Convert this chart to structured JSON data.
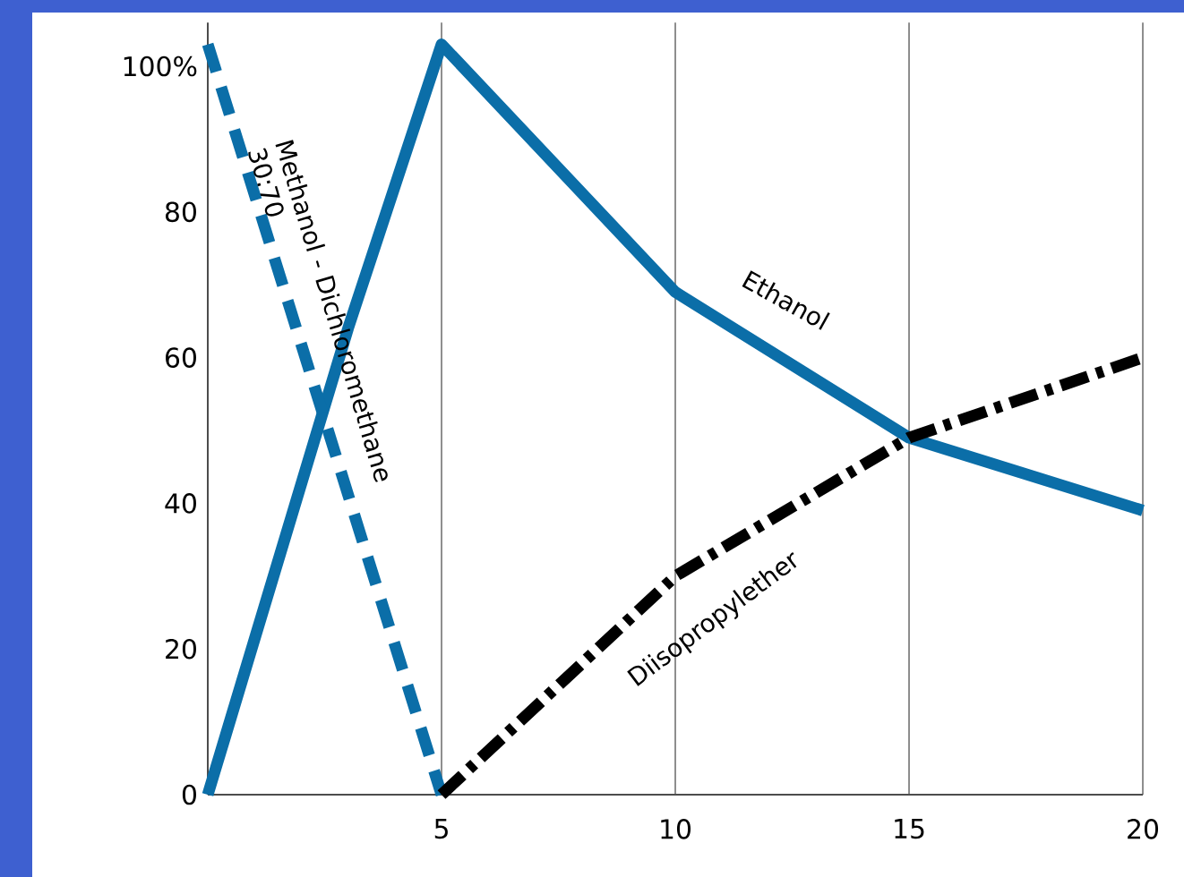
{
  "chart_data": {
    "type": "line",
    "series": [
      {
        "name": "Ethanol",
        "color": "#0b6ea8",
        "line_style": "solid",
        "x": [
          0,
          3,
          5,
          10,
          15,
          20
        ],
        "values": [
          0,
          64,
          103,
          69,
          49,
          39
        ]
      },
      {
        "name": "Methanol - Dichloromethane 30:70",
        "color": "#0b6ea8",
        "line_style": "dashed",
        "x": [
          0,
          5
        ],
        "values": [
          103,
          0
        ]
      },
      {
        "name": "Diisopropylether",
        "color": "#000000",
        "line_style": "dashdot",
        "x": [
          5,
          10,
          15,
          20
        ],
        "values": [
          0,
          30,
          49,
          60
        ]
      }
    ],
    "xlim": [
      0,
      20
    ],
    "xticks": [
      5,
      10,
      15,
      20
    ],
    "ylim": [
      0,
      106
    ],
    "yticks": [
      0,
      20,
      40,
      60,
      80,
      {
        "value": 100,
        "label": "100%"
      }
    ],
    "grid": "x",
    "legend": false,
    "marker": "none"
  }
}
